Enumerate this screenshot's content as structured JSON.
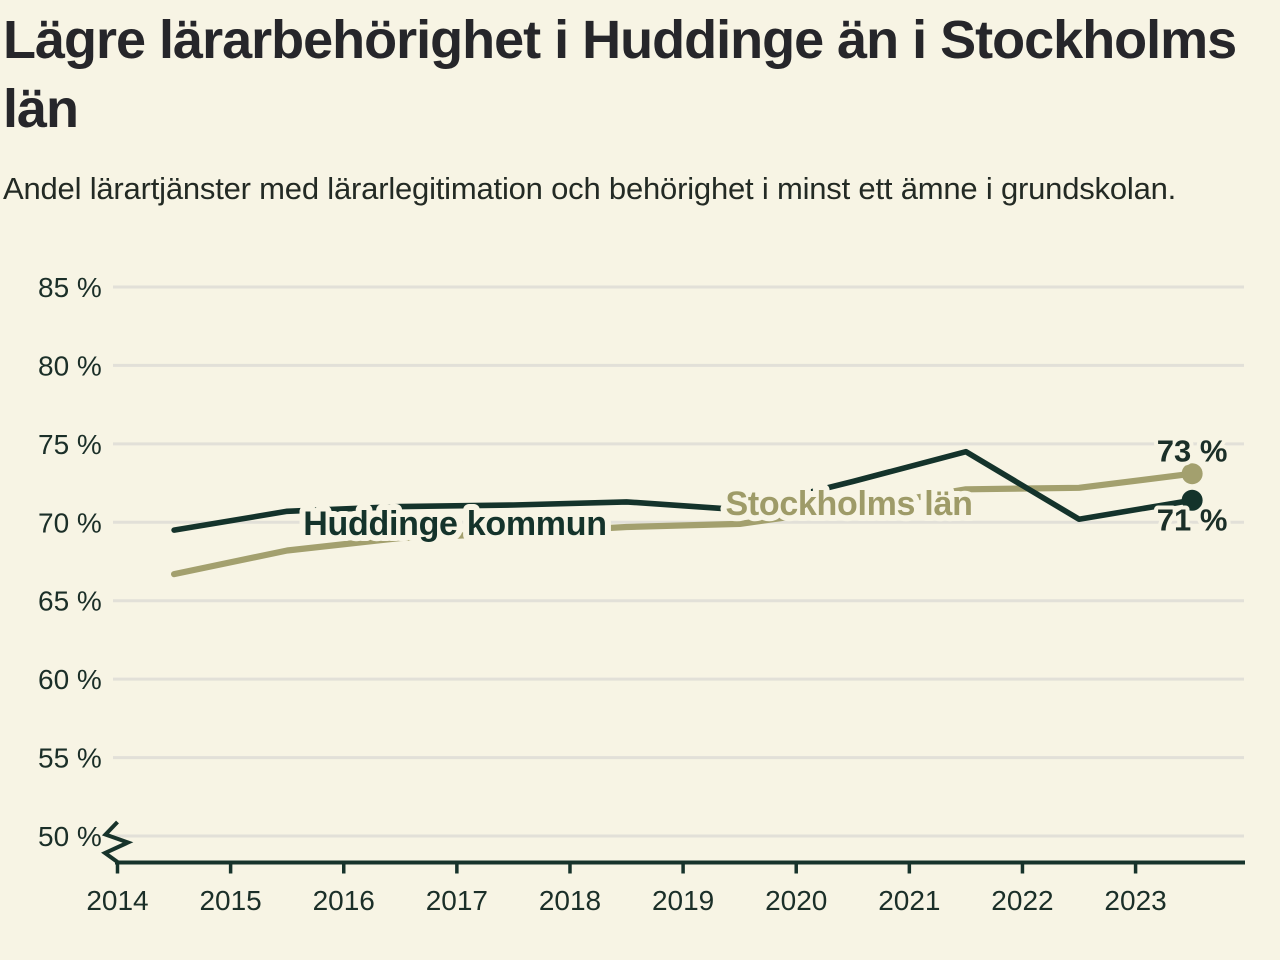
{
  "header": {
    "title": "Lägre lärarbehörighet i Huddinge än i Stockholms län",
    "subtitle": "Andel lärartjänster med lärarlegitimation och behörighet i minst ett ämne i grundskolan."
  },
  "colors": {
    "background": "#f7f4e4",
    "grid": "#e2e0d8",
    "axis": "#17332b",
    "axis_text": "#1b2f28",
    "title_text": "#26262a",
    "huddinge_dark_green": "#14332b",
    "stockholm_olive": "#a3a06e",
    "stockholm_label_olive": "#9e9b68"
  },
  "chart_data": {
    "type": "line",
    "title": "Lägre lärarbehörighet i Huddinge än i Stockholms län",
    "subtitle": "Andel lärartjänster med lärarlegitimation och behörighet i minst ett ämne i grundskolan.",
    "grid": "horizontal",
    "y_axis_break_at_bottom": true,
    "ylim": [
      50,
      85
    ],
    "y_unit": "%",
    "x": [
      2014.5,
      2015.5,
      2016.5,
      2017.5,
      2018.5,
      2019.5,
      2020.5,
      2021.5,
      2022.5,
      2023.5
    ],
    "x_ticks": [
      {
        "value": 2014,
        "label": "2014"
      },
      {
        "value": 2015,
        "label": "2015"
      },
      {
        "value": 2016,
        "label": "2016"
      },
      {
        "value": 2017,
        "label": "2017"
      },
      {
        "value": 2018,
        "label": "2018"
      },
      {
        "value": 2019,
        "label": "2019"
      },
      {
        "value": 2020,
        "label": "2020"
      },
      {
        "value": 2021,
        "label": "2021"
      },
      {
        "value": 2022,
        "label": "2022"
      },
      {
        "value": 2023,
        "label": "2023"
      }
    ],
    "y_ticks": [
      {
        "value": 50,
        "label": "50 %"
      },
      {
        "value": 55,
        "label": "55 %"
      },
      {
        "value": 60,
        "label": "60 %"
      },
      {
        "value": 65,
        "label": "65 %"
      },
      {
        "value": 70,
        "label": "70 %"
      },
      {
        "value": 75,
        "label": "75 %"
      },
      {
        "value": 80,
        "label": "80 %"
      },
      {
        "value": 85,
        "label": "85 %"
      }
    ],
    "series": [
      {
        "name": "Stockholms län",
        "color": "#a3a06e",
        "label_color": "#9e9b68",
        "values": [
          66.7,
          68.2,
          69.0,
          69.3,
          69.7,
          69.9,
          70.9,
          72.1,
          72.2,
          73.1
        ],
        "end_label": "73 %",
        "end_dot": true
      },
      {
        "name": "Huddinge kommun",
        "color": "#14332b",
        "label_color": "#14332b",
        "values": [
          69.5,
          70.7,
          71.0,
          71.1,
          71.3,
          70.8,
          72.6,
          74.5,
          70.2,
          71.4
        ],
        "end_label": "71 %",
        "end_dot": true
      }
    ]
  }
}
